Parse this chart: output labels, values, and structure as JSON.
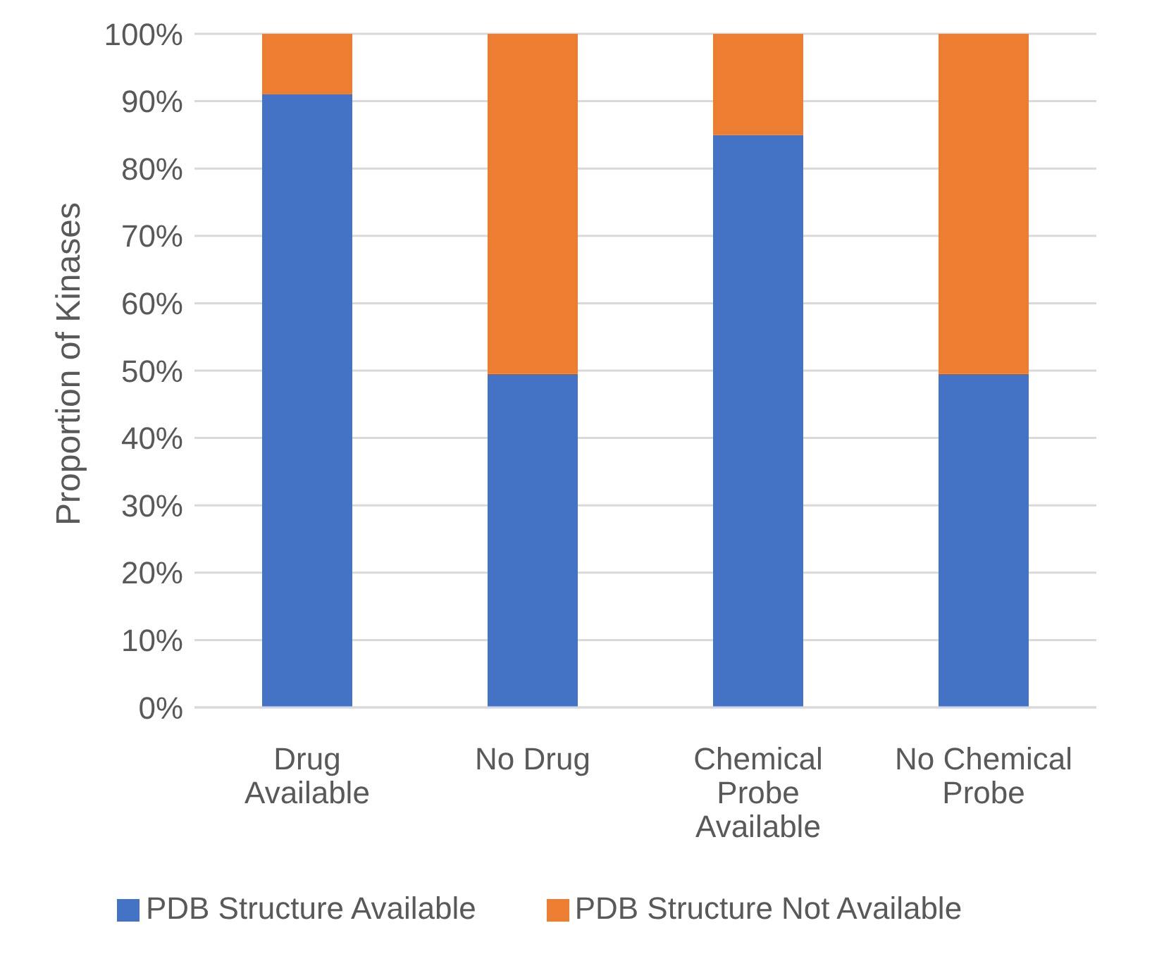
{
  "chart_data": {
    "type": "bar",
    "stacked": true,
    "ylabel": "Proportion of Kinases",
    "categories": [
      "Drug Available",
      "No Drug",
      "Chemical Probe Available",
      "No Chemical Probe"
    ],
    "series": [
      {
        "name": "PDB Structure Available",
        "color": "#4472c4",
        "values": [
          91,
          49.5,
          85,
          49.5
        ]
      },
      {
        "name": "PDB Structure Not Available",
        "color": "#ed7d31",
        "values": [
          9,
          50.5,
          15,
          50.5
        ]
      }
    ],
    "ylim": [
      0,
      100
    ],
    "yticks": [
      {
        "value": 0,
        "label": "0%"
      },
      {
        "value": 10,
        "label": "10%"
      },
      {
        "value": 20,
        "label": "20%"
      },
      {
        "value": 30,
        "label": "30%"
      },
      {
        "value": 40,
        "label": "40%"
      },
      {
        "value": 50,
        "label": "50%"
      },
      {
        "value": 60,
        "label": "60%"
      },
      {
        "value": 70,
        "label": "70%"
      },
      {
        "value": 80,
        "label": "80%"
      },
      {
        "value": 90,
        "label": "90%"
      },
      {
        "value": 100,
        "label": "100%"
      }
    ],
    "grid": "y",
    "legend": "bottom"
  }
}
